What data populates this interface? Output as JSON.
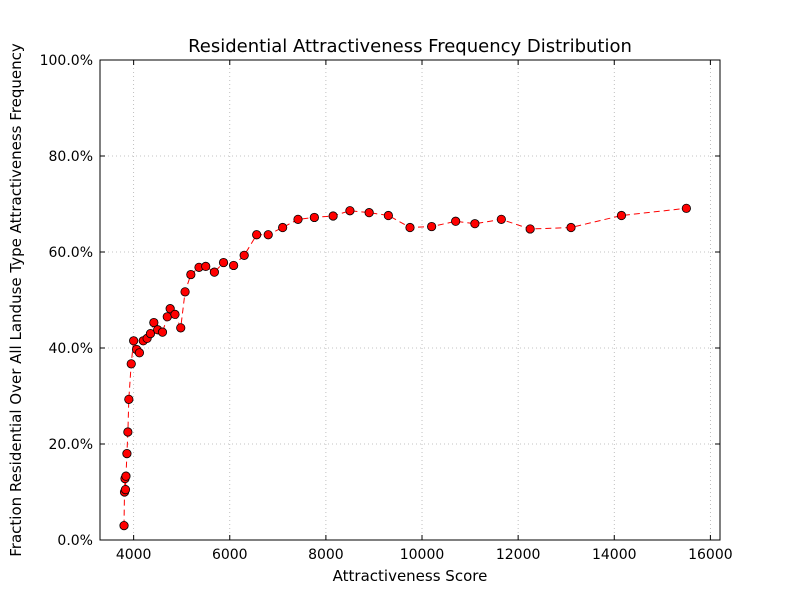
{
  "chart_data": {
    "type": "scatter",
    "title": "Residential Attractiveness Frequency Distribution",
    "xlabel": "Attractiveness Score",
    "ylabel": "Fraction Residential Over All Landuse Type Attractiveness Frequency",
    "xlim": [
      3300,
      16200
    ],
    "ylim": [
      0,
      100
    ],
    "x_ticks": [
      4000,
      6000,
      8000,
      10000,
      12000,
      14000,
      16000
    ],
    "x_tick_labels": [
      "4000",
      "6000",
      "8000",
      "10000",
      "12000",
      "14000",
      "16000"
    ],
    "y_ticks": [
      0,
      20,
      40,
      60,
      80,
      100
    ],
    "y_tick_labels": [
      "0.0%",
      "20.0%",
      "40.0%",
      "60.0%",
      "80.0%",
      "100.0%"
    ],
    "grid": true,
    "line_style": "dashed",
    "marker": "circle",
    "color": "#ff0000",
    "marker_edge_color": "#000000",
    "series": [
      {
        "x": [
          3800,
          3810,
          3820,
          3830,
          3840,
          3860,
          3880,
          3900,
          3950,
          4000,
          4060,
          4120,
          4200,
          4280,
          4350,
          4420,
          4500,
          4600,
          4700,
          4760,
          4860,
          4980,
          5070,
          5190,
          5360,
          5500,
          5680,
          5870,
          6080,
          6300,
          6560,
          6800,
          7100,
          7420,
          7760,
          8150,
          8500,
          8900,
          9300,
          9750,
          10200,
          10700,
          11100,
          11650,
          12250,
          13100,
          14150,
          15500
        ],
        "y": [
          3.0,
          10.0,
          12.8,
          10.5,
          13.3,
          18.0,
          22.5,
          29.3,
          36.7,
          41.5,
          39.7,
          39.0,
          41.5,
          42.0,
          43.0,
          45.3,
          43.8,
          43.3,
          46.5,
          48.2,
          47.0,
          44.2,
          51.7,
          55.3,
          56.8,
          57.0,
          55.8,
          57.8,
          57.2,
          59.3,
          63.6,
          63.6,
          65.1,
          66.8,
          67.2,
          67.5,
          68.6,
          68.2,
          67.6,
          65.1,
          65.3,
          66.4,
          65.9,
          66.8,
          64.8,
          65.1,
          67.6,
          69.1
        ]
      }
    ]
  }
}
